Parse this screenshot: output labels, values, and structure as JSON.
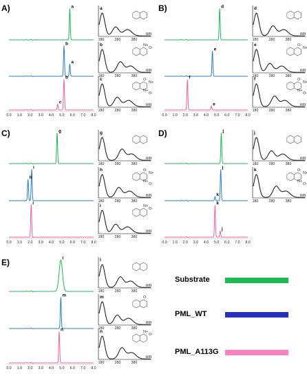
{
  "colors": {
    "substrate": "#1db954",
    "pml_wt": "#2a7fc4",
    "pml_a113g": "#f2609a",
    "uv_line": "#222222",
    "molecule": "#555555"
  },
  "legend": {
    "items": [
      {
        "label": "Substrate",
        "bar_color": "#1db954"
      },
      {
        "label": "PML_WT",
        "bar_color": "#2a2fc0"
      },
      {
        "label": "PML_A113G",
        "bar_color": "#ff80c0"
      }
    ]
  },
  "chart_data": [
    {
      "type": "line",
      "panel": "A)",
      "x_ticks": [
        "0.0",
        "1.0",
        "2.0",
        "3.0",
        "4.0",
        "5.0",
        "6.0",
        "7.0",
        "8.0"
      ],
      "xlim": [
        0,
        8
      ],
      "traces": [
        {
          "series": "Substrate",
          "peaks": [
            {
              "label": "a",
              "x": 5.75,
              "h": 0.95
            }
          ]
        },
        {
          "series": "PML_WT",
          "peaks": [
            {
              "label": "b",
              "x": 5.2,
              "h": 0.95
            },
            {
              "label": "a",
              "x": 5.75,
              "h": 0.38
            }
          ]
        },
        {
          "series": "PML_A113G",
          "peaks": [
            {
              "label": "c",
              "x": 4.6,
              "h": 0.18
            },
            {
              "label": "b",
              "x": 5.2,
              "h": 0.95
            }
          ]
        }
      ],
      "uv_spectra": [
        {
          "label": "a",
          "x_ticks": [
            "180",
            "280",
            "380"
          ],
          "unit": "nm",
          "molecule": "quinoxaline",
          "atoms": []
        },
        {
          "label": "b",
          "x_ticks": [
            "180",
            "280",
            "380"
          ],
          "unit": "nm",
          "molecule": "quinoxaline N-oxide",
          "atoms": [
            "N+",
            "O-"
          ]
        },
        {
          "label": "c",
          "x_ticks": [
            "180",
            "280",
            "380"
          ],
          "unit": "nm",
          "molecule": "quinoxaline N,N'-dioxide",
          "atoms": [
            "O-",
            "N+",
            "N+",
            "O-"
          ]
        }
      ]
    },
    {
      "type": "line",
      "panel": "B)",
      "x_ticks": [
        "0.0",
        "1.0",
        "2.0",
        "3.0",
        "4.0",
        "5.0",
        "6.0",
        "7.0",
        "8.0"
      ],
      "xlim": [
        0,
        8
      ],
      "traces": [
        {
          "series": "Substrate",
          "peaks": [
            {
              "label": "d",
              "x": 5.3,
              "h": 0.95
            }
          ]
        },
        {
          "series": "PML_WT",
          "peaks": [
            {
              "label": "e",
              "x": 4.6,
              "h": 0.78
            }
          ]
        },
        {
          "series": "PML_A113G",
          "peaks": [
            {
              "label": "f",
              "x": 2.2,
              "h": 0.95
            },
            {
              "label": "e",
              "x": 4.5,
              "h": 0.12
            }
          ]
        }
      ],
      "uv_spectra": [
        {
          "label": "d",
          "x_ticks": [
            "180",
            "280",
            "380"
          ],
          "unit": "nm",
          "molecule": "2,5-dimethylpyrazine",
          "atoms": []
        },
        {
          "label": "e",
          "x_ticks": [
            "180",
            "280",
            "380"
          ],
          "unit": "nm",
          "molecule": "2,5-dimethylpyrazine N-oxide",
          "atoms": [
            "O-",
            "N+"
          ]
        },
        {
          "label": "f",
          "x_ticks": [
            "180",
            "280",
            "380"
          ],
          "unit": "nm",
          "molecule": "2,5-dimethylpyrazine N,N'-dioxide",
          "atoms": [
            "O-",
            "N+",
            "N+",
            "O-"
          ]
        }
      ]
    },
    {
      "type": "line",
      "panel": "C)",
      "x_ticks": [
        "0.0",
        "1.0",
        "2.0",
        "3.0",
        "4.0",
        "5.0",
        "6.0",
        "7.0",
        "8.0"
      ],
      "xlim": [
        0,
        8
      ],
      "traces": [
        {
          "series": "Substrate",
          "peaks": [
            {
              "label": "g",
              "x": 4.55,
              "h": 0.95
            }
          ]
        },
        {
          "series": "PML_WT",
          "peaks": [
            {
              "label": "h",
              "x": 1.8,
              "h": 0.65
            },
            {
              "label": "i",
              "x": 2.15,
              "h": 0.95
            }
          ]
        },
        {
          "series": "PML_A113G",
          "peaks": [
            {
              "label": "i",
              "x": 2.1,
              "h": 0.95
            }
          ]
        }
      ],
      "uv_spectra": [
        {
          "label": "g",
          "x_ticks": [
            "180",
            "280",
            "380"
          ],
          "unit": "nm",
          "molecule": "pyrazine",
          "atoms": []
        },
        {
          "label": "h",
          "x_ticks": [
            "180",
            "280",
            "380"
          ],
          "unit": "nm",
          "molecule": "pyrazine N,N'-dioxide",
          "atoms": [
            "O-",
            "N+",
            "N+",
            "O-"
          ]
        },
        {
          "label": "i",
          "x_ticks": [
            "180",
            "280",
            "380"
          ],
          "unit": "nm",
          "molecule": "pyrazine N-oxide",
          "atoms": [
            "N+",
            "O-"
          ]
        }
      ]
    },
    {
      "type": "line",
      "panel": "D)",
      "x_ticks": [
        "0.0",
        "1.0",
        "2.0",
        "3.0",
        "4.0",
        "5.0",
        "6.0",
        "7.0",
        "8.0"
      ],
      "xlim": [
        0,
        8
      ],
      "traces": [
        {
          "series": "Substrate",
          "peaks": [
            {
              "label": "j",
              "x": 5.45,
              "h": 0.95
            }
          ]
        },
        {
          "series": "PML_WT",
          "peaks": [
            {
              "label": "k",
              "x": 4.85,
              "h": 0.12
            },
            {
              "label": "j",
              "x": 5.4,
              "h": 0.95
            }
          ]
        },
        {
          "series": "PML_A113G",
          "peaks": [
            {
              "label": "k",
              "x": 4.85,
              "h": 0.95
            },
            {
              "label": "j",
              "x": 5.35,
              "h": 0.18
            }
          ]
        }
      ],
      "uv_spectra": [
        {
          "label": "j",
          "x_ticks": [
            "180",
            "280",
            "380"
          ],
          "unit": "nm",
          "molecule": "tetramethylpyrazine",
          "atoms": []
        },
        {
          "label": "k",
          "x_ticks": [
            "180",
            "280",
            "380"
          ],
          "unit": "nm",
          "molecule": "tetramethylpyrazine N,N'-dioxide",
          "atoms": [
            "O-",
            "N+",
            "N+",
            "O-"
          ]
        }
      ]
    },
    {
      "type": "line",
      "panel": "E)",
      "x_ticks": [
        "0.0",
        "1.0",
        "2.0",
        "3.0",
        "4.0",
        "5.0",
        "6.0",
        "7.0",
        "8.0"
      ],
      "xlim": [
        0,
        8
      ],
      "traces": [
        {
          "series": "Substrate",
          "peaks": [
            {
              "label": "l",
              "x": 4.9,
              "h": 0.95,
              "wide": true
            }
          ]
        },
        {
          "series": "PML_WT",
          "peaks": [
            {
              "label": "m",
              "x": 4.9,
              "h": 0.95
            }
          ]
        },
        {
          "series": "PML_A113G",
          "peaks": [
            {
              "label": "n",
              "x": 4.75,
              "h": 0.95
            }
          ]
        }
      ],
      "uv_spectra": [
        {
          "label": "l",
          "x_ticks": [
            "180",
            "280",
            "380"
          ],
          "unit": "nm",
          "molecule": "quinazoline",
          "atoms": []
        },
        {
          "label": "m",
          "x_ticks": [
            "180",
            "280",
            "380"
          ],
          "unit": "nm",
          "molecule": "quinazolin-4(3H)-one",
          "atoms": [
            "O"
          ]
        },
        {
          "label": "n",
          "x_ticks": [
            "180",
            "280",
            "380"
          ],
          "unit": "nm",
          "molecule": "quinazoline N-oxide",
          "atoms": [
            "N+",
            "O-"
          ]
        }
      ]
    }
  ]
}
